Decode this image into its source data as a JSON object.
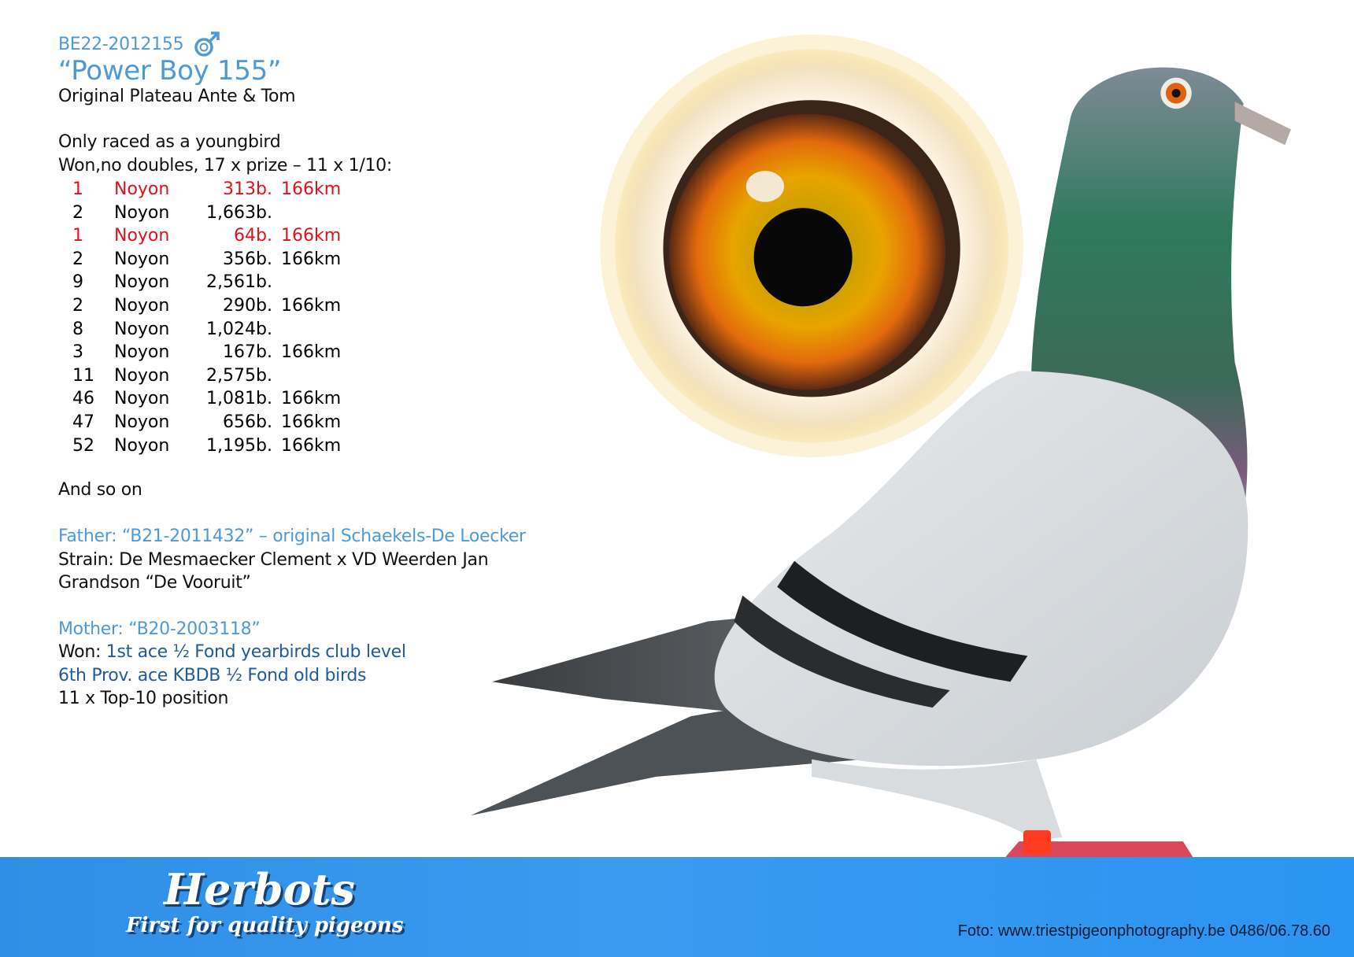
{
  "header": {
    "ring_number": "BE22-2012155",
    "sex_icon": "male-symbol-icon",
    "name": "“Power Boy 155”",
    "origin": "Original Plateau Ante & Tom"
  },
  "results": {
    "intro_line1": "Only raced as a youngbird",
    "intro_line2": "Won,no doubles, 17 x prize – 11 x 1/10:",
    "rows": [
      {
        "rank": "1",
        "place": "Noyon",
        "birds": "313b.",
        "km": "166km",
        "highlight": true
      },
      {
        "rank": "2",
        "place": "Noyon",
        "birds": "1,663b.",
        "km": "",
        "highlight": false
      },
      {
        "rank": "1",
        "place": "Noyon",
        "birds": "64b.",
        "km": "166km",
        "highlight": true
      },
      {
        "rank": "2",
        "place": "Noyon",
        "birds": "356b.",
        "km": "166km",
        "highlight": false
      },
      {
        "rank": "9",
        "place": "Noyon",
        "birds": "2,561b.",
        "km": "",
        "highlight": false
      },
      {
        "rank": "2",
        "place": "Noyon",
        "birds": "290b.",
        "km": "166km",
        "highlight": false
      },
      {
        "rank": "8",
        "place": "Noyon",
        "birds": "1,024b.",
        "km": "",
        "highlight": false
      },
      {
        "rank": "3",
        "place": "Noyon",
        "birds": "167b.",
        "km": "166km",
        "highlight": false
      },
      {
        "rank": "11",
        "place": "Noyon",
        "birds": "2,575b.",
        "km": "",
        "highlight": false
      },
      {
        "rank": "46",
        "place": "Noyon",
        "birds": "1,081b.",
        "km": "166km",
        "highlight": false
      },
      {
        "rank": "47",
        "place": "Noyon",
        "birds": "656b.",
        "km": "166km",
        "highlight": false
      },
      {
        "rank": "52",
        "place": "Noyon",
        "birds": "1,195b.",
        "km": "166km",
        "highlight": false
      }
    ],
    "outro": "And so on"
  },
  "father": {
    "title": "Father: “B21-2011432” – original Schaekels-De Loecker",
    "line1": "Strain: De Mesmaecker Clement x VD Weerden Jan",
    "line2": "Grandson “De Vooruit”"
  },
  "mother": {
    "title": "Mother: “B20-2003118”",
    "won_label": "Won: ",
    "won_line1": "1st ace ½ Fond yearbirds club level",
    "line2": "6th Prov. ace KBDB ½ Fond old birds",
    "line3": "11 x Top-10 position"
  },
  "footer": {
    "logo_name": "Herbots",
    "logo_tagline": "First for quality pigeons",
    "photo_credit": "Foto: www.triestpigeonphotography.be 0486/06.78.60"
  },
  "colors": {
    "accent_blue": "#4d9ad8",
    "dark_blue": "#1f5b99",
    "highlight_red": "#e3101a",
    "band_blue": "#2f8fe6"
  }
}
